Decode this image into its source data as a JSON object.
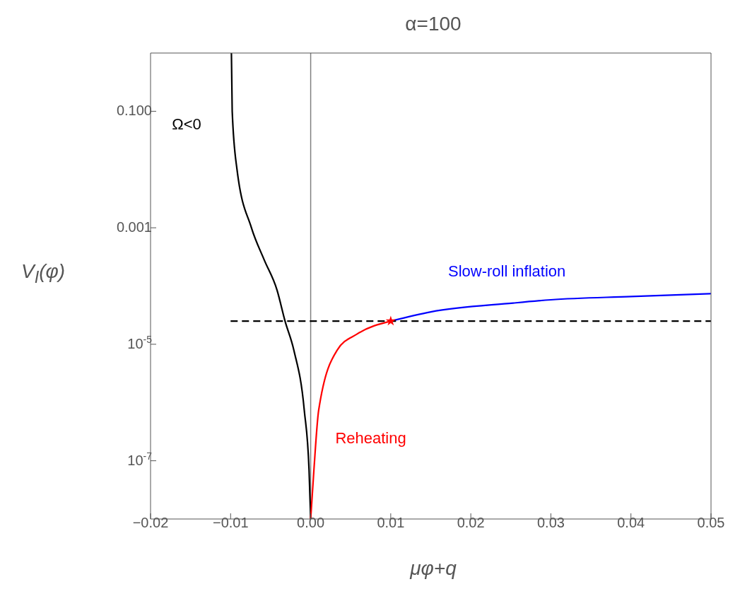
{
  "chart_data": {
    "type": "line",
    "title": "α=100",
    "xlabel": "μφ+q",
    "ylabel": "V$_{I}$(φ)",
    "xlim": [
      -0.02,
      0.05
    ],
    "xticks": [
      {
        "value": -0.02,
        "label": "−0.02"
      },
      {
        "value": -0.01,
        "label": "−0.01"
      },
      {
        "value": 0,
        "label": "0.00"
      },
      0.01,
      0.02,
      0.03,
      0.04,
      0.05
    ],
    "ylim": [
      1e-08,
      1
    ],
    "yticks": [
      {
        "value": 0.1,
        "label": "0.100"
      },
      {
        "value": 0.001,
        "label": "0.001"
      },
      {
        "value": 1e-05,
        "label": "10$^{-5}$"
      },
      {
        "value": 1e-07,
        "label": "10$^{-7}$"
      }
    ],
    "log": "y",
    "marker": "none",
    "line_style": "solid",
    "series": [
      {
        "name": "Ω<0",
        "color": "#000000",
        "x": [
          -0.0099,
          -0.0098,
          -0.0092,
          -0.0074,
          -0.0058,
          -0.0042,
          -0.0032,
          -0.0021,
          -0.0008,
          -0.0002,
          0
        ],
        "values": [
          1,
          0.1,
          0.01,
          0.001,
          0.00028,
          8.5e-05,
          2.5e-05,
          7.9e-06,
          7.4e-07,
          6.8e-08,
          1e-08
        ]
      },
      {
        "name": "Reheating",
        "color": "#ff0000",
        "x": [
          0,
          0.0004,
          0.001,
          0.0033,
          0.0058,
          0.01
        ],
        "values": [
          1e-08,
          6.8e-08,
          7.4e-07,
          7.9e-06,
          1.5e-05,
          2.5e-05
        ]
      },
      {
        "name": "Slow-roll inflation",
        "color": "#0000ff",
        "x": [
          0.01,
          0.015,
          0.0253,
          0.03,
          0.04,
          0.05
        ],
        "values": [
          2.5e-05,
          3.6e-05,
          5.1e-05,
          5.8e-05,
          6.6e-05,
          7.4e-05
        ]
      },
      {
        "color": "#000000",
        "line_style": "dashed",
        "x": [
          -0.01,
          0.05
        ],
        "values": [
          2.5e-05,
          2.5e-05
        ]
      },
      {
        "type": "scatter",
        "marker": "star",
        "color": "#ff0000",
        "x": [
          0.01
        ],
        "values": [
          2.5e-05
        ]
      }
    ],
    "ref_lines": [
      {
        "axis": "x",
        "value": 0,
        "color": "#808080"
      }
    ]
  }
}
